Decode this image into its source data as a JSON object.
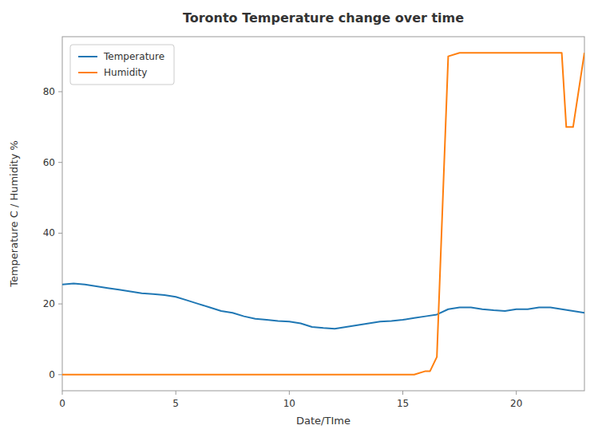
{
  "chart_data": {
    "type": "line",
    "title": "Toronto Temperature change over time",
    "xlabel": "Date/TIme",
    "ylabel": "Temperature C / Humidity %",
    "series": [
      {
        "name": "Temperature",
        "color": "#1f77b4",
        "x": [
          0,
          0.5,
          1,
          1.5,
          2,
          2.5,
          3,
          3.5,
          4,
          4.5,
          5,
          5.5,
          6,
          6.5,
          7,
          7.5,
          8,
          8.5,
          9,
          9.5,
          10,
          10.5,
          11,
          11.5,
          12,
          12.5,
          13,
          13.5,
          14,
          14.5,
          15,
          15.5,
          16,
          16.5,
          17,
          17.5,
          18,
          18.5,
          19,
          19.5,
          20,
          20.5,
          21,
          21.5,
          22,
          22.5,
          23
        ],
        "values": [
          25.5,
          25.8,
          25.5,
          25.0,
          24.5,
          24.0,
          23.5,
          23.0,
          22.8,
          22.5,
          22.0,
          21.0,
          20.0,
          19.0,
          18.0,
          17.5,
          16.5,
          15.8,
          15.5,
          15.2,
          15.0,
          14.5,
          13.5,
          13.2,
          13.0,
          13.5,
          14.0,
          14.5,
          15.0,
          15.2,
          15.5,
          16.0,
          16.5,
          17.0,
          18.5,
          19.0,
          19.0,
          18.5,
          18.2,
          18.0,
          18.5,
          18.5,
          19.0,
          19.0,
          18.5,
          18.0,
          17.5
        ]
      },
      {
        "name": "Humidity",
        "color": "#ff7f0e",
        "x": [
          0,
          0.5,
          1,
          1.5,
          2,
          2.5,
          3,
          3.5,
          4,
          4.5,
          5,
          5.5,
          6,
          6.5,
          7,
          7.5,
          8,
          8.5,
          9,
          9.5,
          10,
          10.5,
          11,
          11.5,
          12,
          12.5,
          13,
          13.5,
          14,
          14.5,
          15,
          15.5,
          16,
          16.2,
          16.5,
          17.0,
          17.5,
          18.0,
          18.5,
          19.0,
          19.5,
          20.0,
          20.5,
          21.0,
          21.5,
          22.0,
          22.2,
          22.5,
          23.0
        ],
        "values": [
          0,
          0,
          0,
          0,
          0,
          0,
          0,
          0,
          0,
          0,
          0,
          0,
          0,
          0,
          0,
          0,
          0,
          0,
          0,
          0,
          0,
          0,
          0,
          0,
          0,
          0,
          0,
          0,
          0,
          0,
          0,
          0,
          1,
          1,
          5,
          90,
          91,
          91,
          91,
          91,
          91,
          91,
          91,
          91,
          91,
          91,
          70,
          70,
          91
        ]
      }
    ],
    "xlim": [
      0,
      23
    ],
    "xticks": [
      0,
      5,
      10,
      15,
      20
    ],
    "ylim": [
      -4.55,
      95.55
    ],
    "yticks": [
      0,
      20,
      40,
      60,
      80
    ],
    "grid": false,
    "legend": "upper left"
  }
}
